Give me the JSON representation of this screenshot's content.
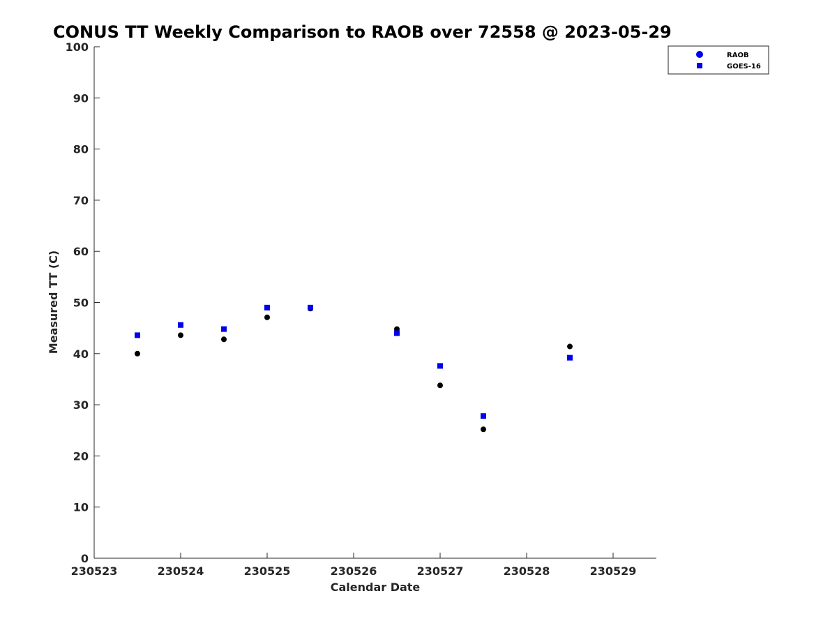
{
  "chart_data": {
    "type": "scatter",
    "title": "CONUS TT Weekly Comparison to RAOB over 72558 @ 2023-05-29",
    "xlabel": "Calendar Date",
    "ylabel": "Measured TT (C)",
    "xlim": [
      230523,
      230529.5
    ],
    "ylim": [
      0,
      100
    ],
    "x_ticks": [
      230523,
      230524,
      230525,
      230526,
      230527,
      230528,
      230529
    ],
    "x_tick_labels": [
      "230523",
      "230524",
      "230525",
      "230526",
      "230527",
      "230528",
      "230529"
    ],
    "y_ticks": [
      0,
      10,
      20,
      30,
      40,
      50,
      60,
      70,
      80,
      90,
      100
    ],
    "y_tick_labels": [
      "0",
      "10",
      "20",
      "30",
      "40",
      "50",
      "60",
      "70",
      "80",
      "90",
      "100"
    ],
    "grid": false,
    "legend_position": "top-right",
    "legend_marker_color": "#0000ee",
    "series": [
      {
        "name": "RAOB",
        "marker": "circle",
        "color": "#000000",
        "x": [
          230523.5,
          230524.0,
          230524.5,
          230525.0,
          230525.5,
          230526.5,
          230527.0,
          230527.5,
          230528.5
        ],
        "y": [
          40.0,
          43.6,
          42.8,
          47.1,
          48.8,
          44.8,
          33.8,
          25.2,
          41.4
        ]
      },
      {
        "name": "GOES-16",
        "marker": "square",
        "color": "#0000ee",
        "x": [
          230523.5,
          230524.0,
          230524.5,
          230525.0,
          230525.5,
          230526.5,
          230527.0,
          230527.5,
          230528.5
        ],
        "y": [
          43.6,
          45.6,
          44.8,
          49.0,
          49.0,
          44.0,
          37.6,
          27.8,
          39.2
        ]
      }
    ]
  }
}
